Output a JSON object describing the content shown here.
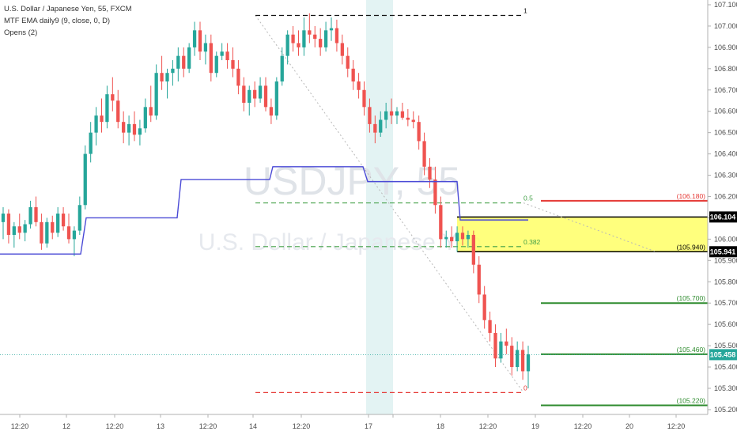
{
  "legend": {
    "symbol_line": "U.S. Dollar / Japanese Yen, 55, FXCM",
    "indicator_1": "MTF EMA daily9 (9, close, 0, D)",
    "indicator_2": "Opens (2)"
  },
  "watermark": {
    "ticker": "USDJPY, 55",
    "name": "U.S. Dollar / Japanese Yen"
  },
  "colors": {
    "up_candle": "#26a69a",
    "down_candle": "#ef5350",
    "ema": "#4a4ad6",
    "fib_black": "#111111",
    "fib_green": "#43a047",
    "fib_red": "#e53935",
    "zone": "#ffff66",
    "session_band": "#d9efef",
    "last_price": "#26a69a",
    "level_green": "#2e8b2e",
    "level_red": "#e53935"
  },
  "chart_data": {
    "type": "candlestick",
    "title": "U.S. Dollar / Japanese Yen, 55, FXCM",
    "ylim": [
      105.17,
      107.1
    ],
    "y_ticks": [
      "107.100",
      "107.000",
      "106.900",
      "106.800",
      "106.700",
      "106.600",
      "106.500",
      "106.400",
      "106.300",
      "106.200",
      "106.100",
      "106.000",
      "105.900",
      "105.800",
      "105.700",
      "105.600",
      "105.500",
      "105.400",
      "105.300",
      "105.200"
    ],
    "x_tick_labels": [
      "12:20",
      "12",
      "12:20",
      "13",
      "12:20",
      "14",
      "12:20",
      "17",
      "12:20",
      "18",
      "12:20",
      "19",
      "12:20",
      "20",
      "12:20"
    ],
    "candles": [
      {
        "o": 106.08,
        "h": 106.15,
        "l": 106.0,
        "c": 106.12
      },
      {
        "o": 106.12,
        "h": 106.14,
        "l": 105.98,
        "c": 106.02
      },
      {
        "o": 106.02,
        "h": 106.08,
        "l": 105.96,
        "c": 106.06
      },
      {
        "o": 106.06,
        "h": 106.12,
        "l": 106.0,
        "c": 106.03
      },
      {
        "o": 106.03,
        "h": 106.09,
        "l": 105.99,
        "c": 106.07
      },
      {
        "o": 106.07,
        "h": 106.18,
        "l": 106.05,
        "c": 106.15
      },
      {
        "o": 106.15,
        "h": 106.2,
        "l": 106.06,
        "c": 106.08
      },
      {
        "o": 106.08,
        "h": 106.12,
        "l": 105.95,
        "c": 105.98
      },
      {
        "o": 105.98,
        "h": 106.1,
        "l": 105.96,
        "c": 106.08
      },
      {
        "o": 106.08,
        "h": 106.11,
        "l": 106.0,
        "c": 106.03
      },
      {
        "o": 106.03,
        "h": 106.15,
        "l": 106.01,
        "c": 106.12
      },
      {
        "o": 106.12,
        "h": 106.15,
        "l": 106.04,
        "c": 106.06
      },
      {
        "o": 106.06,
        "h": 106.12,
        "l": 105.98,
        "c": 106.0
      },
      {
        "o": 106.0,
        "h": 106.06,
        "l": 105.92,
        "c": 106.04
      },
      {
        "o": 106.04,
        "h": 106.2,
        "l": 106.02,
        "c": 106.16
      },
      {
        "o": 106.16,
        "h": 106.44,
        "l": 106.14,
        "c": 106.4
      },
      {
        "o": 106.4,
        "h": 106.55,
        "l": 106.36,
        "c": 106.5
      },
      {
        "o": 106.5,
        "h": 106.62,
        "l": 106.44,
        "c": 106.58
      },
      {
        "o": 106.58,
        "h": 106.66,
        "l": 106.5,
        "c": 106.55
      },
      {
        "o": 106.55,
        "h": 106.72,
        "l": 106.52,
        "c": 106.68
      },
      {
        "o": 106.68,
        "h": 106.76,
        "l": 106.6,
        "c": 106.65
      },
      {
        "o": 106.65,
        "h": 106.7,
        "l": 106.52,
        "c": 106.55
      },
      {
        "o": 106.55,
        "h": 106.6,
        "l": 106.45,
        "c": 106.5
      },
      {
        "o": 106.5,
        "h": 106.58,
        "l": 106.44,
        "c": 106.54
      },
      {
        "o": 106.54,
        "h": 106.6,
        "l": 106.46,
        "c": 106.49
      },
      {
        "o": 106.49,
        "h": 106.56,
        "l": 106.44,
        "c": 106.52
      },
      {
        "o": 106.52,
        "h": 106.66,
        "l": 106.5,
        "c": 106.62
      },
      {
        "o": 106.62,
        "h": 106.72,
        "l": 106.55,
        "c": 106.58
      },
      {
        "o": 106.58,
        "h": 106.82,
        "l": 106.56,
        "c": 106.78
      },
      {
        "o": 106.78,
        "h": 106.86,
        "l": 106.7,
        "c": 106.74
      },
      {
        "o": 106.74,
        "h": 106.8,
        "l": 106.66,
        "c": 106.78
      },
      {
        "o": 106.78,
        "h": 106.84,
        "l": 106.72,
        "c": 106.8
      },
      {
        "o": 106.8,
        "h": 106.9,
        "l": 106.74,
        "c": 106.86
      },
      {
        "o": 106.86,
        "h": 106.9,
        "l": 106.76,
        "c": 106.8
      },
      {
        "o": 106.8,
        "h": 106.92,
        "l": 106.78,
        "c": 106.9
      },
      {
        "o": 106.9,
        "h": 107.02,
        "l": 106.86,
        "c": 106.98
      },
      {
        "o": 106.98,
        "h": 107.02,
        "l": 106.84,
        "c": 106.88
      },
      {
        "o": 106.88,
        "h": 106.96,
        "l": 106.82,
        "c": 106.92
      },
      {
        "o": 106.92,
        "h": 106.96,
        "l": 106.74,
        "c": 106.78
      },
      {
        "o": 106.78,
        "h": 106.88,
        "l": 106.76,
        "c": 106.86
      },
      {
        "o": 106.86,
        "h": 106.92,
        "l": 106.84,
        "c": 106.88
      },
      {
        "o": 106.88,
        "h": 106.92,
        "l": 106.8,
        "c": 106.84
      },
      {
        "o": 106.84,
        "h": 106.9,
        "l": 106.76,
        "c": 106.8
      },
      {
        "o": 106.8,
        "h": 106.84,
        "l": 106.68,
        "c": 106.72
      },
      {
        "o": 106.72,
        "h": 106.76,
        "l": 106.6,
        "c": 106.64
      },
      {
        "o": 106.64,
        "h": 106.72,
        "l": 106.58,
        "c": 106.7
      },
      {
        "o": 106.7,
        "h": 106.74,
        "l": 106.62,
        "c": 106.66
      },
      {
        "o": 106.66,
        "h": 106.76,
        "l": 106.64,
        "c": 106.72
      },
      {
        "o": 106.72,
        "h": 106.76,
        "l": 106.6,
        "c": 106.62
      },
      {
        "o": 106.62,
        "h": 106.66,
        "l": 106.54,
        "c": 106.58
      },
      {
        "o": 106.58,
        "h": 106.76,
        "l": 106.56,
        "c": 106.74
      },
      {
        "o": 106.74,
        "h": 106.9,
        "l": 106.72,
        "c": 106.86
      },
      {
        "o": 106.86,
        "h": 106.98,
        "l": 106.82,
        "c": 106.96
      },
      {
        "o": 106.96,
        "h": 107.0,
        "l": 106.88,
        "c": 106.92
      },
      {
        "o": 106.92,
        "h": 106.98,
        "l": 106.86,
        "c": 106.9
      },
      {
        "o": 106.9,
        "h": 107.04,
        "l": 106.86,
        "c": 106.98
      },
      {
        "o": 106.98,
        "h": 107.06,
        "l": 106.92,
        "c": 106.96
      },
      {
        "o": 106.96,
        "h": 107.0,
        "l": 106.9,
        "c": 106.94
      },
      {
        "o": 106.94,
        "h": 106.99,
        "l": 106.86,
        "c": 106.9
      },
      {
        "o": 106.9,
        "h": 107.02,
        "l": 106.88,
        "c": 106.98
      },
      {
        "o": 106.98,
        "h": 107.04,
        "l": 106.93,
        "c": 106.99
      },
      {
        "o": 106.99,
        "h": 107.03,
        "l": 106.88,
        "c": 106.92
      },
      {
        "o": 106.92,
        "h": 106.96,
        "l": 106.82,
        "c": 106.86
      },
      {
        "o": 106.86,
        "h": 106.9,
        "l": 106.76,
        "c": 106.8
      },
      {
        "o": 106.8,
        "h": 106.84,
        "l": 106.7,
        "c": 106.74
      },
      {
        "o": 106.74,
        "h": 106.78,
        "l": 106.66,
        "c": 106.7
      },
      {
        "o": 106.7,
        "h": 106.74,
        "l": 106.58,
        "c": 106.62
      },
      {
        "o": 106.62,
        "h": 106.66,
        "l": 106.5,
        "c": 106.54
      },
      {
        "o": 106.54,
        "h": 106.58,
        "l": 106.45,
        "c": 106.5
      },
      {
        "o": 106.5,
        "h": 106.6,
        "l": 106.48,
        "c": 106.56
      },
      {
        "o": 106.56,
        "h": 106.64,
        "l": 106.52,
        "c": 106.6
      },
      {
        "o": 106.6,
        "h": 106.66,
        "l": 106.54,
        "c": 106.58
      },
      {
        "o": 106.58,
        "h": 106.62,
        "l": 106.54,
        "c": 106.6
      },
      {
        "o": 106.6,
        "h": 106.64,
        "l": 106.56,
        "c": 106.57
      },
      {
        "o": 106.57,
        "h": 106.61,
        "l": 106.53,
        "c": 106.56
      },
      {
        "o": 106.56,
        "h": 106.6,
        "l": 106.52,
        "c": 106.55
      },
      {
        "o": 106.55,
        "h": 106.58,
        "l": 106.42,
        "c": 106.46
      },
      {
        "o": 106.46,
        "h": 106.5,
        "l": 106.3,
        "c": 106.34
      },
      {
        "o": 106.34,
        "h": 106.38,
        "l": 106.24,
        "c": 106.28
      },
      {
        "o": 106.28,
        "h": 106.34,
        "l": 106.12,
        "c": 106.16
      },
      {
        "o": 106.16,
        "h": 106.2,
        "l": 105.96,
        "c": 106.0
      },
      {
        "o": 106.0,
        "h": 106.04,
        "l": 105.96,
        "c": 106.01
      },
      {
        "o": 106.01,
        "h": 106.06,
        "l": 105.96,
        "c": 105.99
      },
      {
        "o": 105.99,
        "h": 106.06,
        "l": 105.94,
        "c": 106.03
      },
      {
        "o": 106.03,
        "h": 106.06,
        "l": 105.97,
        "c": 106.0
      },
      {
        "o": 106.0,
        "h": 106.04,
        "l": 105.96,
        "c": 106.02
      },
      {
        "o": 106.02,
        "h": 106.04,
        "l": 105.84,
        "c": 105.88
      },
      {
        "o": 105.88,
        "h": 105.92,
        "l": 105.7,
        "c": 105.74
      },
      {
        "o": 105.74,
        "h": 105.78,
        "l": 105.58,
        "c": 105.62
      },
      {
        "o": 105.62,
        "h": 105.66,
        "l": 105.52,
        "c": 105.56
      },
      {
        "o": 105.56,
        "h": 105.6,
        "l": 105.4,
        "c": 105.44
      },
      {
        "o": 105.44,
        "h": 105.56,
        "l": 105.42,
        "c": 105.52
      },
      {
        "o": 105.52,
        "h": 105.58,
        "l": 105.46,
        "c": 105.5
      },
      {
        "o": 105.5,
        "h": 105.54,
        "l": 105.36,
        "c": 105.4
      },
      {
        "o": 105.4,
        "h": 105.52,
        "l": 105.38,
        "c": 105.48
      },
      {
        "o": 105.48,
        "h": 105.52,
        "l": 105.34,
        "c": 105.38
      },
      {
        "o": 105.38,
        "h": 105.5,
        "l": 105.3,
        "c": 105.46
      }
    ],
    "ema_path": [
      {
        "x": 0,
        "y": 105.93
      },
      {
        "x": 102,
        "y": 105.93
      },
      {
        "x": 109,
        "y": 106.1
      },
      {
        "x": 224,
        "y": 106.1
      },
      {
        "x": 229,
        "y": 106.28
      },
      {
        "x": 341,
        "y": 106.28
      },
      {
        "x": 345,
        "y": 106.34
      },
      {
        "x": 459,
        "y": 106.34
      },
      {
        "x": 465,
        "y": 106.27
      },
      {
        "x": 578,
        "y": 106.27
      },
      {
        "x": 582,
        "y": 106.09
      },
      {
        "x": 668,
        "y": 106.09
      }
    ],
    "annotations": {
      "fib_levels": [
        {
          "ratio": "1",
          "price": 107.05,
          "style": "black"
        },
        {
          "ratio": "0.5",
          "price": 106.17,
          "style": "green"
        },
        {
          "ratio": "0.382",
          "price": 105.965,
          "style": "green"
        },
        {
          "ratio": "0",
          "price": 105.28,
          "style": "red"
        }
      ],
      "price_levels": [
        {
          "label": "(106.180)",
          "price": 106.18,
          "color": "red"
        },
        {
          "label": "(105.940)",
          "price": 105.94,
          "color": "black"
        },
        {
          "label": "(105.700)",
          "price": 105.7,
          "color": "green"
        },
        {
          "label": "(105.460)",
          "price": 105.46,
          "color": "green"
        },
        {
          "label": "(105.220)",
          "price": 105.22,
          "color": "green"
        }
      ],
      "zone": {
        "top": 106.104,
        "bottom": 105.941
      },
      "axis_badges": [
        {
          "label": "106.104",
          "price": 106.104,
          "style": "black"
        },
        {
          "label": "105.941",
          "price": 105.941,
          "style": "black"
        },
        {
          "label": "105.458",
          "price": 105.458,
          "style": "teal"
        }
      ],
      "last_price": 105.458
    }
  }
}
